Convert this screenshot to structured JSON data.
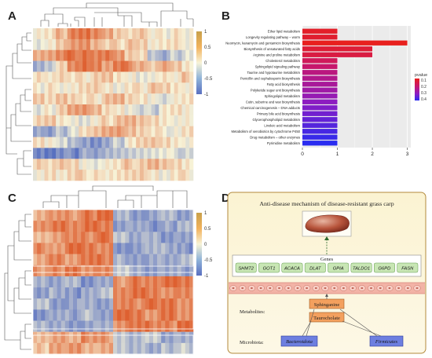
{
  "panels": {
    "a": {
      "letter": "A"
    },
    "b": {
      "letter": "B"
    },
    "c": {
      "letter": "C"
    },
    "d": {
      "letter": "D"
    }
  },
  "heatmap_a": {
    "scale_ticks": [
      "1",
      "0.5",
      "0",
      "-0.5",
      "-1"
    ],
    "rows": [
      [
        0.1,
        0.2,
        0.4,
        0.7,
        0.8,
        0.7,
        0.5,
        0.3,
        0.2,
        0.4,
        0.1,
        0.0,
        0.1,
        -0.1
      ],
      [
        -0.2,
        0.0,
        0.3,
        0.6,
        0.7,
        0.5,
        0.3,
        0.2,
        0.3,
        0.2,
        0.0,
        0.1,
        0.2,
        0.0
      ],
      [
        0.5,
        0.6,
        0.8,
        0.9,
        0.8,
        0.7,
        0.8,
        0.6,
        0.3,
        0.2,
        -0.3,
        -0.5,
        -0.3,
        -0.2
      ],
      [
        -0.6,
        -0.4,
        0.2,
        0.7,
        0.9,
        0.8,
        0.6,
        0.9,
        0.7,
        0.4,
        0.2,
        0.5,
        0.3,
        0.1
      ],
      [
        0.2,
        0.1,
        0.3,
        0.2,
        0.1,
        0.2,
        0.3,
        0.1,
        0.0,
        -0.1,
        0.0,
        0.2,
        0.1,
        0.3
      ],
      [
        0.0,
        0.1,
        -0.1,
        0.0,
        0.2,
        0.3,
        0.1,
        0.0,
        0.2,
        0.1,
        0.3,
        0.2,
        0.1,
        0.0
      ],
      [
        0.3,
        0.2,
        0.4,
        0.3,
        0.2,
        0.1,
        0.3,
        0.4,
        0.2,
        0.1,
        0.0,
        -0.2,
        0.1,
        0.2
      ],
      [
        -0.1,
        0.0,
        0.2,
        0.5,
        0.6,
        0.4,
        0.2,
        0.1,
        0.0,
        -0.2,
        -0.3,
        0.0,
        0.1,
        0.0
      ],
      [
        0.2,
        0.3,
        0.1,
        0.0,
        -0.1,
        0.1,
        0.2,
        0.3,
        0.4,
        0.3,
        0.2,
        0.1,
        0.0,
        0.1
      ],
      [
        -0.5,
        -0.6,
        -0.4,
        -0.2,
        0.1,
        0.3,
        0.5,
        0.6,
        0.4,
        0.3,
        0.2,
        0.0,
        -0.1,
        0.1
      ],
      [
        0.1,
        0.0,
        -0.2,
        -0.4,
        -0.6,
        -0.7,
        -0.5,
        -0.3,
        0.0,
        0.2,
        0.3,
        0.2,
        0.1,
        0.0
      ],
      [
        -0.8,
        -0.9,
        -0.7,
        -0.8,
        -0.6,
        -0.7,
        -0.5,
        -0.4,
        -0.3,
        -0.2,
        -0.1,
        0.0,
        -0.2,
        -0.3
      ],
      [
        0.2,
        0.1,
        0.3,
        0.2,
        0.0,
        -0.1,
        0.1,
        0.2,
        0.3,
        0.2,
        0.4,
        0.3,
        0.2,
        0.1
      ],
      [
        0.0,
        0.2,
        0.1,
        0.3,
        0.2,
        0.1,
        0.0,
        0.1,
        0.2,
        0.3,
        0.1,
        0.0,
        0.2,
        0.1
      ]
    ]
  },
  "heatmap_c": {
    "scale_ticks": [
      "1",
      "0.5",
      "0",
      "-0.5",
      "-1"
    ],
    "rows": [
      [
        0.5,
        0.7,
        0.6,
        0.8,
        0.9,
        -0.5,
        -0.7,
        -0.6,
        -0.4,
        -0.6
      ],
      [
        0.6,
        0.8,
        0.7,
        0.9,
        0.8,
        -0.6,
        -0.5,
        -0.7,
        -0.6,
        -0.5
      ],
      [
        0.4,
        0.6,
        0.8,
        0.7,
        0.9,
        -0.4,
        -0.6,
        -0.5,
        -0.7,
        -0.6
      ],
      [
        0.7,
        0.5,
        0.9,
        0.8,
        0.7,
        -0.7,
        -0.6,
        -0.4,
        -0.5,
        -0.7
      ],
      [
        0.5,
        0.8,
        0.6,
        0.9,
        0.8,
        -0.5,
        -0.7,
        -0.6,
        -0.6,
        -0.4
      ],
      [
        0.6,
        0.7,
        0.8,
        0.6,
        0.7,
        -0.3,
        -0.5,
        -0.6,
        -0.5,
        -0.6
      ],
      [
        -0.5,
        -0.6,
        -0.4,
        -0.7,
        -0.5,
        0.6,
        0.8,
        0.7,
        0.9,
        0.8
      ],
      [
        -0.6,
        -0.5,
        -0.7,
        -0.6,
        -0.4,
        0.7,
        0.9,
        0.8,
        0.7,
        0.8
      ],
      [
        -0.4,
        -0.7,
        -0.6,
        -0.5,
        -0.6,
        0.8,
        0.7,
        0.9,
        0.8,
        0.6
      ],
      [
        -0.7,
        -0.5,
        -0.6,
        -0.4,
        -0.7,
        0.9,
        0.8,
        0.6,
        0.9,
        0.7
      ],
      [
        -0.5,
        -0.6,
        -0.7,
        -0.6,
        -0.5,
        0.7,
        0.9,
        0.8,
        0.7,
        0.9
      ],
      [
        0.4,
        0.6,
        0.5,
        0.7,
        0.6,
        -0.4,
        -0.5,
        -0.3,
        -0.6,
        -0.5
      ],
      [
        0.3,
        0.5,
        0.6,
        0.4,
        0.5,
        -0.3,
        -0.4,
        -0.5,
        -0.4,
        -0.3
      ]
    ]
  },
  "chart_data": {
    "type": "bar",
    "orientation": "horizontal",
    "categories": [
      "Ether lipid metabolism",
      "Longevity regulating pathway – worm",
      "Neomycin, kanamycin and gentamicin biosynthesis",
      "Biosynthesis of unsaturated fatty acids",
      "Arginine and proline metabolism",
      "Cholesterol metabolism",
      "Sphingolipid signaling pathway",
      "Taurine and hypotaurine metabolism",
      "Penicillin and cephalosporin biosynthesis",
      "Fatty acid biosynthesis",
      "Polyketide sugar unit biosynthesis",
      "Sphingolipid metabolism",
      "Cutin, suberine and wax biosynthesis",
      "Chemical carcinogenesis – DNA adducts",
      "Primary bile acid biosynthesis",
      "Glycerophospholipid metabolism",
      "Linoleic acid metabolism",
      "Metabolism of xenobiotics by cytochrome P450",
      "Drug metabolism – other enzymes",
      "Pyrimidine metabolism"
    ],
    "values": [
      1,
      1,
      3,
      2,
      2,
      1,
      1,
      1,
      1,
      1,
      1,
      1,
      1,
      1,
      1,
      1,
      1,
      1,
      1,
      1
    ],
    "pvalues": [
      0.04,
      0.05,
      0.02,
      0.06,
      0.08,
      0.12,
      0.15,
      0.18,
      0.2,
      0.22,
      0.24,
      0.26,
      0.28,
      0.3,
      0.32,
      0.34,
      0.36,
      0.38,
      0.4,
      0.42
    ],
    "xticks": [
      "0",
      "1",
      "2",
      "3"
    ],
    "xlim": [
      0,
      3.1
    ],
    "legend": {
      "title": "pvalue",
      "ticks": [
        "0.1",
        "0.2",
        "0.3",
        "0.4"
      ],
      "placement": "right"
    },
    "grid": true
  },
  "schematic": {
    "title": "Anti-disease mechanism of disease-resistant grass carp",
    "genes_label": "Genes",
    "genes": [
      "SHMT2",
      "GOT1",
      "ACACA",
      "DLAT",
      "GPIA",
      "TALDO1",
      "G6PD",
      "FASN"
    ],
    "metabolites_label": "Metabolites:",
    "metabolites": [
      "Sphinganine",
      "Taurocholate"
    ],
    "microbiota_label": "Microbiota:",
    "microbiota": [
      "Bacteroidota",
      "Firmicutes"
    ]
  }
}
